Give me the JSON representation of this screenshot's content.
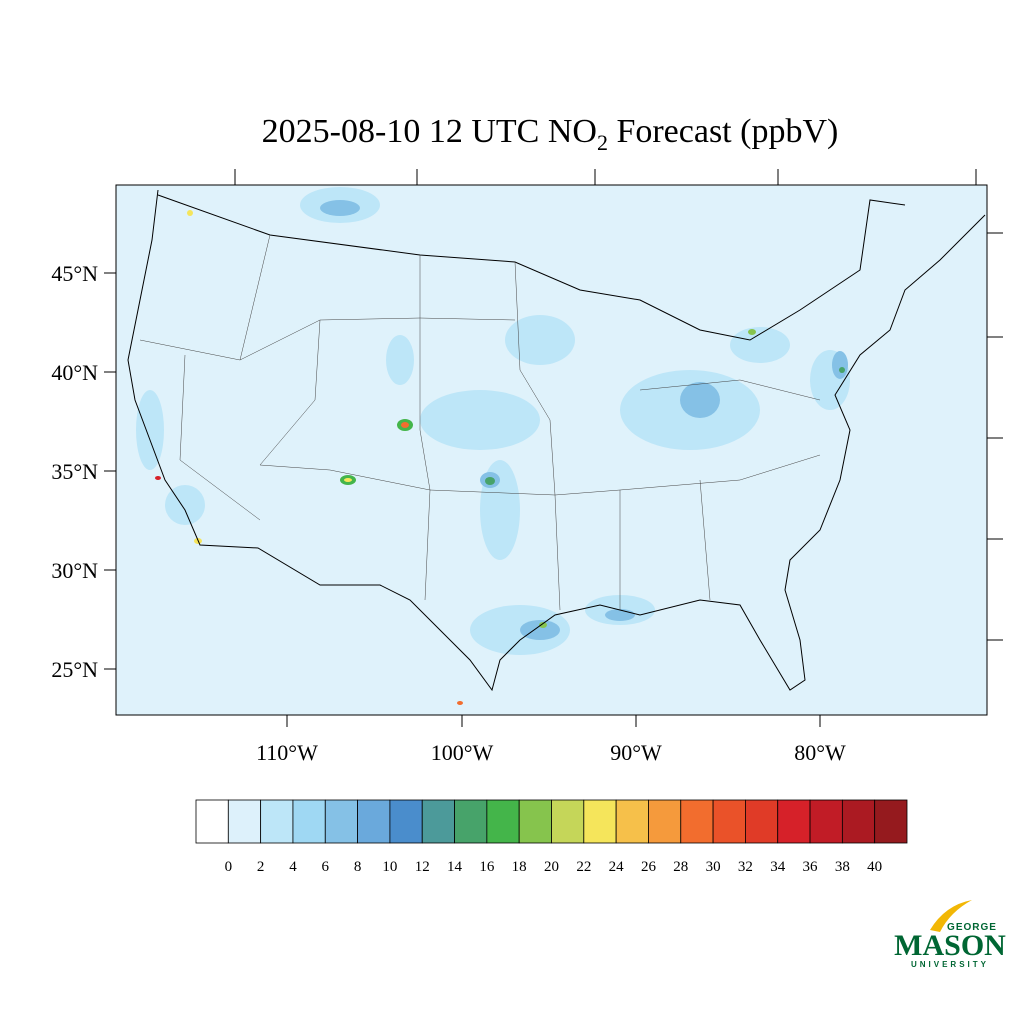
{
  "title_parts": [
    "2025-08-10 12 UTC NO",
    "2",
    " Forecast (ppbV)"
  ],
  "lat_labels": [
    "45°N",
    "40°N",
    "35°N",
    "30°N",
    "25°N"
  ],
  "lon_labels": [
    "110°W",
    "100°W",
    "90°W",
    "80°W"
  ],
  "colorbar": {
    "ticks": [
      0,
      2,
      4,
      6,
      8,
      10,
      12,
      14,
      16,
      18,
      20,
      22,
      24,
      26,
      28,
      30,
      32,
      34,
      36,
      38,
      40
    ],
    "colors": [
      "#ffffff",
      "#ddf1fb",
      "#bde6f8",
      "#9fd8f3",
      "#85c1e6",
      "#6aa9dc",
      "#4a8dcc",
      "#4c9a9a",
      "#47a36a",
      "#44b54a",
      "#86c44d",
      "#c5d659",
      "#f5e55b",
      "#f6c04a",
      "#f59a3c",
      "#f26d2e",
      "#ea5229",
      "#e03b27",
      "#d62129",
      "#c11c26",
      "#ab1a22",
      "#951a1e"
    ]
  },
  "logo": {
    "top": "GEORGE",
    "main": "MASON",
    "bottom": "UNIVERSITY"
  }
}
